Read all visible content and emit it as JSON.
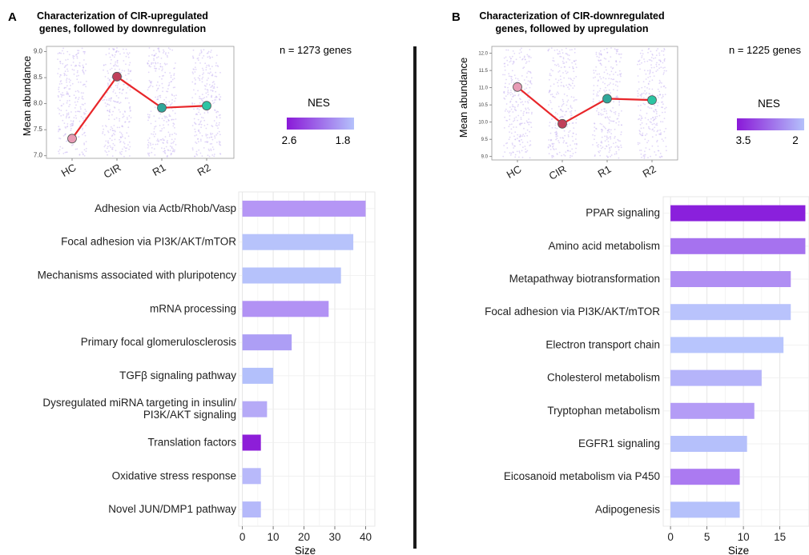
{
  "chart_data": [
    {
      "panel_letter": "A",
      "title_lines": [
        "Characterization of CIR-upregulated",
        "genes, followed by downregulation"
      ],
      "annotation": "n = 1273 genes",
      "line": {
        "type": "line",
        "categories": [
          "HC",
          "CIR",
          "R1",
          "R2"
        ],
        "values": [
          7.33,
          8.52,
          7.92,
          7.96
        ],
        "ylabel": "Mean abundance",
        "yticks": [
          7.0,
          7.5,
          8.0,
          8.5,
          9.0
        ],
        "ylim": [
          6.95,
          9.1
        ],
        "point_colors": [
          "#e79bb5",
          "#c0405a",
          "#2fa79a",
          "#2cc5a3"
        ],
        "line_color": "#e8262a"
      },
      "legend": {
        "title": "NES",
        "min_label": "2.6",
        "max_label": "1.8",
        "color_low": "#8a19d8",
        "color_high": "#b4c1fb"
      },
      "bars": {
        "type": "bar",
        "orientation": "horizontal",
        "categories": [
          "Adhesion via Actb/Rhob/Vasp",
          "Focal adhesion via PI3K/AKT/mTOR",
          "Mechanisms associated with pluripotency",
          "mRNA processing",
          "Primary focal glomerulosclerosis",
          "TGFβ signaling pathway",
          "Dysregulated miRNA targeting in insulin/\nPI3K/AKT signaling",
          "Translation factors",
          "Oxidative stress response",
          "Novel JUN/DMP1 pathway"
        ],
        "values": [
          40,
          36,
          32,
          28,
          16,
          10,
          8,
          6,
          6,
          6
        ],
        "nes_colors": [
          "#b596f5",
          "#b7c3fb",
          "#b6c2fb",
          "#b292f4",
          "#ad9ef5",
          "#b3c0fb",
          "#b6aaf7",
          "#8d1ed8",
          "#b8b9fa",
          "#b5b9fa"
        ],
        "xlabel": "Size",
        "xticks": [
          0,
          10,
          20,
          30,
          40
        ],
        "xlim": [
          -1.2,
          43
        ]
      }
    },
    {
      "panel_letter": "B",
      "title_lines": [
        "Characterization of CIR-downregulated",
        "genes, followed by upregulation"
      ],
      "annotation": "n = 1225 genes",
      "line": {
        "type": "line",
        "categories": [
          "HC",
          "CIR",
          "R1",
          "R2"
        ],
        "values": [
          11.02,
          9.95,
          10.68,
          10.64
        ],
        "ylabel": "Mean abundance",
        "yticks": [
          9.0,
          9.5,
          10.0,
          10.5,
          11.0,
          11.5,
          12.0
        ],
        "ytick_labels": [
          "9.0",
          "9.5",
          "10.0",
          "10.5",
          "11.0",
          "11.5",
          "12.0"
        ],
        "ylim": [
          8.9,
          12.2
        ],
        "point_colors": [
          "#e79bb5",
          "#c0405a",
          "#2fa79a",
          "#2cc5a3"
        ],
        "line_color": "#e8262a"
      },
      "legend": {
        "title": "NES",
        "min_label": "3.5",
        "max_label": "2",
        "color_low": "#8a19d8",
        "color_high": "#b4c1fb"
      },
      "bars": {
        "type": "bar",
        "orientation": "horizontal",
        "categories": [
          "PPAR signaling",
          "Amino acid metabolism",
          "Metapathway biotransformation",
          "Focal adhesion via PI3K/AKT/mTOR",
          "Electron transport chain",
          "Cholesterol metabolism",
          "Tryptophan metabolism",
          "EGFR1 signaling",
          "Eicosanoid metabolism via P450",
          "Adipogenesis"
        ],
        "values": [
          18.5,
          18.5,
          16.5,
          16.5,
          15.5,
          12.5,
          11.5,
          10.5,
          9.5,
          9.5
        ],
        "nes_colors": [
          "#8a20dc",
          "#a672ef",
          "#b08ef3",
          "#b9c3fc",
          "#b8c5fd",
          "#b5b4fa",
          "#b49cf6",
          "#b5c0fb",
          "#ab7af1",
          "#b5c1fb"
        ],
        "xlabel": "Size",
        "xticks": [
          0,
          5,
          10,
          15
        ],
        "xlim": [
          -1,
          19
        ]
      }
    }
  ]
}
